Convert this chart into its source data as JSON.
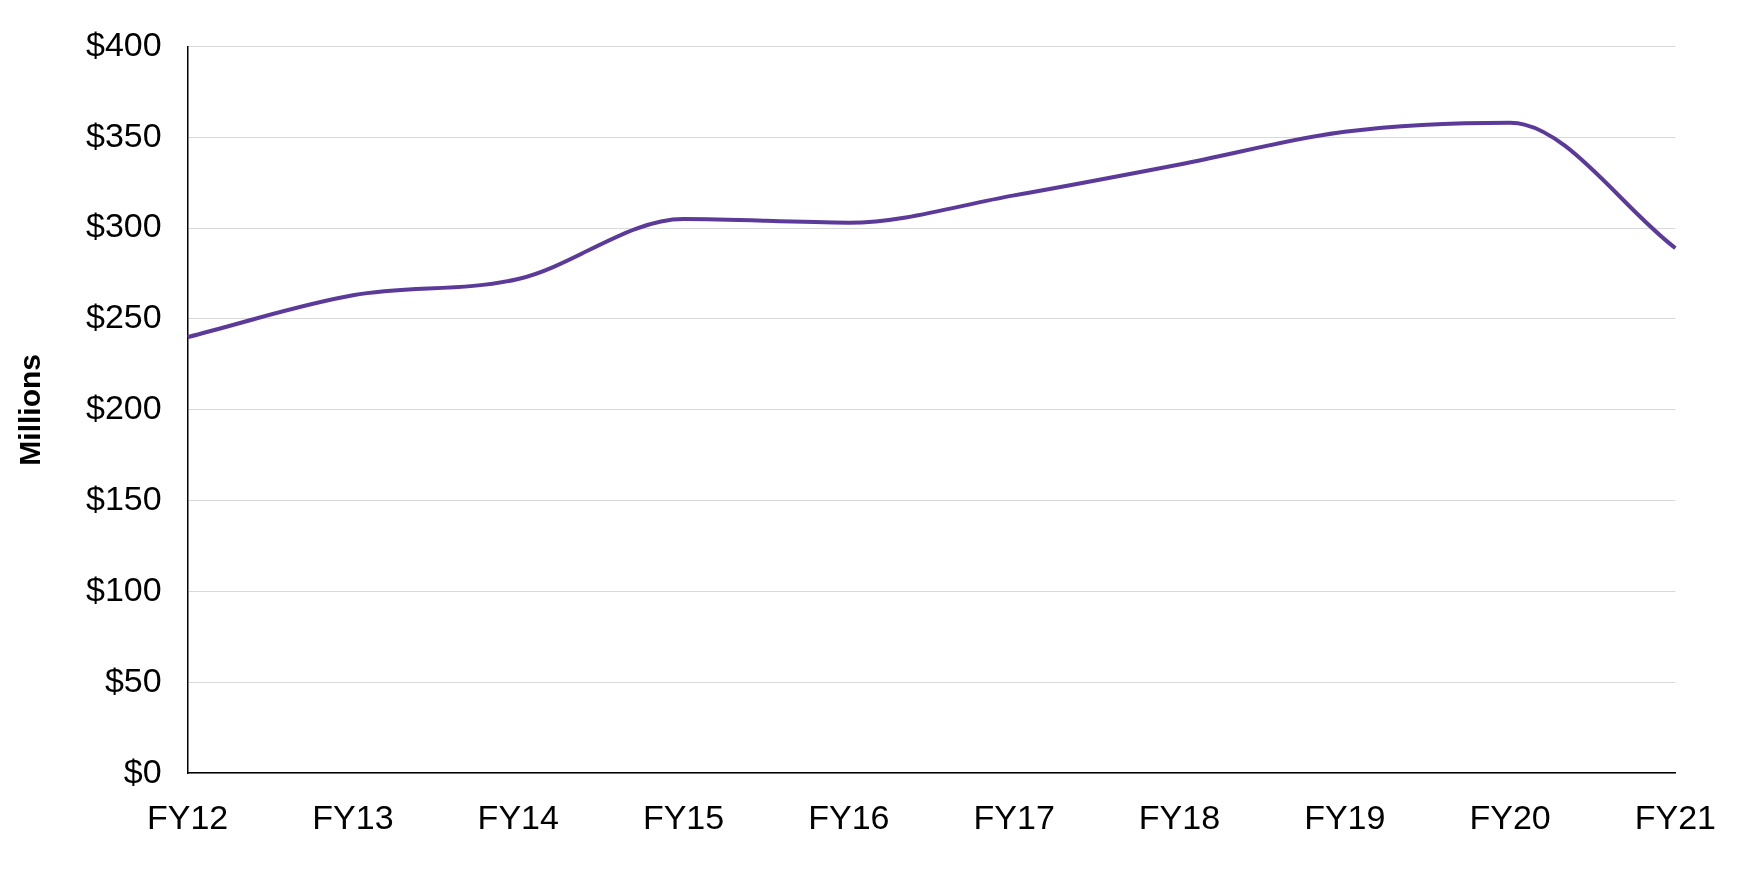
{
  "chart_data": {
    "type": "line",
    "ylabel": "Millions",
    "categories": [
      "FY12",
      "FY13",
      "FY14",
      "FY15",
      "FY16",
      "FY17",
      "FY18",
      "FY19",
      "FY20",
      "FY21"
    ],
    "series": [
      {
        "color": "#5b3a9a",
        "values": [
          240,
          263,
          272,
          305,
          303,
          318,
          335,
          353,
          358,
          289
        ]
      }
    ],
    "ylim": [
      0,
      400
    ],
    "yticks": [
      {
        "value": 0,
        "label": "$0"
      },
      {
        "value": 50,
        "label": "$50"
      },
      {
        "value": 100,
        "label": "$100"
      },
      {
        "value": 150,
        "label": "$150"
      },
      {
        "value": 200,
        "label": "$200"
      },
      {
        "value": 250,
        "label": "$250"
      },
      {
        "value": 300,
        "label": "$300"
      },
      {
        "value": 350,
        "label": "$350"
      },
      {
        "value": 400,
        "label": "$400"
      }
    ],
    "grid": "y",
    "legend": false,
    "marker": "none",
    "line_style": "solid"
  }
}
